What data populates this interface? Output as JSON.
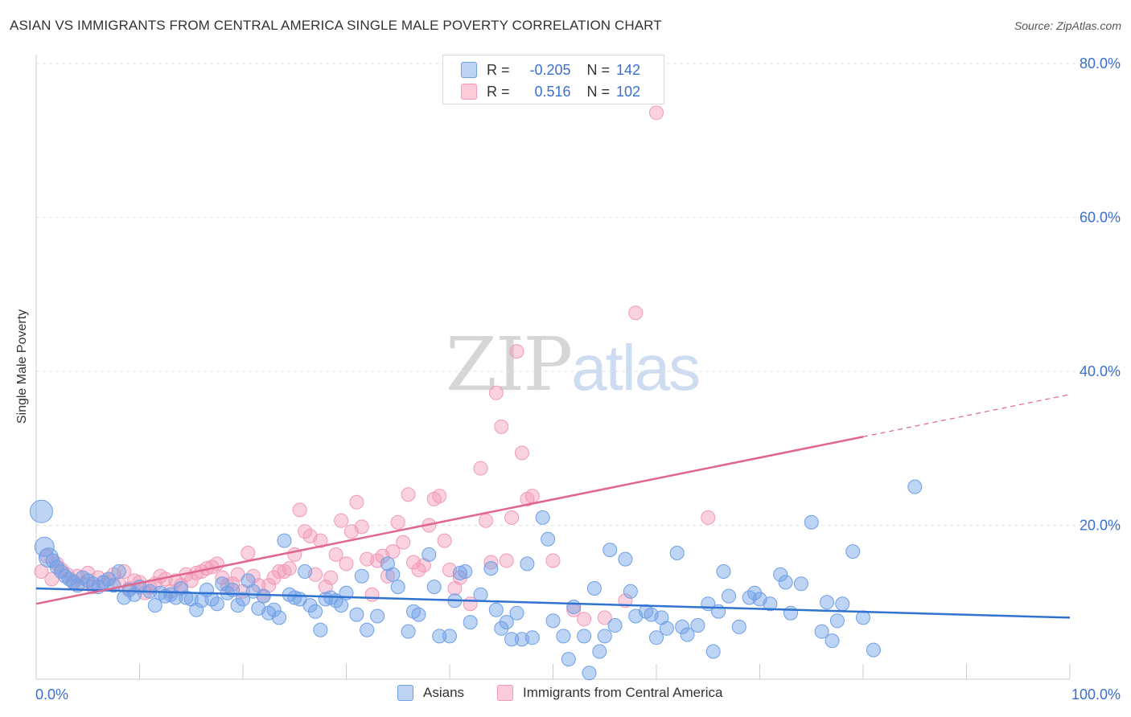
{
  "title": "ASIAN VS IMMIGRANTS FROM CENTRAL AMERICA SINGLE MALE POVERTY CORRELATION CHART",
  "source": "Source: ZipAtlas.com",
  "watermark": {
    "zip": "ZIP",
    "atlas": "atlas"
  },
  "legend_top": [
    {
      "r_label": "R =",
      "r_value": "-0.205",
      "n_label": "N =",
      "n_value": "142"
    },
    {
      "r_label": "R =",
      "r_value": "0.516",
      "n_label": "N =",
      "n_value": "102"
    }
  ],
  "legend_bottom": [
    "Asians",
    "Immigrants from Central America"
  ],
  "colors": {
    "asians": "#6fa0e6",
    "asians_line": "#2f72d0",
    "immigrants": "#f29ab7",
    "immigrants_line": "#e0668f",
    "axis_text": "#3a6fd0",
    "grid": "#e2e2e2"
  },
  "chart_data": {
    "type": "scatter",
    "ylabel": "Single Male Poverty",
    "x_tick_labels": [
      "0.0%",
      "100.0%"
    ],
    "y_tick_labels": [
      "20.0%",
      "40.0%",
      "60.0%",
      "80.0%"
    ],
    "xlim": [
      0,
      100
    ],
    "ylim": [
      0,
      80
    ],
    "y_ticks": [
      20,
      40,
      60,
      80
    ],
    "grid": true,
    "series": [
      {
        "name": "Asians",
        "R": -0.205,
        "N": 142,
        "trend": {
          "x": [
            0,
            100
          ],
          "y": [
            11.8,
            8.0
          ]
        },
        "points": [
          [
            0.5,
            21.8
          ],
          [
            0.8,
            17.2
          ],
          [
            1.2,
            15.8
          ],
          [
            1.6,
            15.4
          ],
          [
            2,
            14.6
          ],
          [
            2.4,
            14.0
          ],
          [
            2.8,
            13.4
          ],
          [
            3.2,
            13.0
          ],
          [
            3.6,
            12.6
          ],
          [
            4,
            12.2
          ],
          [
            4.5,
            13.2
          ],
          [
            5,
            12.8
          ],
          [
            5.5,
            12.4
          ],
          [
            6,
            12.0
          ],
          [
            6.5,
            12.6
          ],
          [
            7,
            13.0
          ],
          [
            7.5,
            12.2
          ],
          [
            8,
            14.0
          ],
          [
            8.5,
            10.6
          ],
          [
            9,
            11.6
          ],
          [
            9.5,
            11.0
          ],
          [
            10,
            12.0
          ],
          [
            11,
            11.4
          ],
          [
            11.5,
            9.6
          ],
          [
            12,
            11.2
          ],
          [
            12.5,
            10.8
          ],
          [
            13,
            11.0
          ],
          [
            13.5,
            10.6
          ],
          [
            14,
            11.8
          ],
          [
            14.5,
            10.6
          ],
          [
            15,
            10.4
          ],
          [
            15.5,
            9.0
          ],
          [
            16,
            10.2
          ],
          [
            16.5,
            11.6
          ],
          [
            17,
            10.4
          ],
          [
            17.5,
            9.8
          ],
          [
            18,
            12.4
          ],
          [
            18.5,
            11.2
          ],
          [
            19,
            11.6
          ],
          [
            19.5,
            9.6
          ],
          [
            20,
            10.4
          ],
          [
            20.5,
            12.8
          ],
          [
            21,
            11.4
          ],
          [
            21.5,
            9.2
          ],
          [
            22,
            10.8
          ],
          [
            22.5,
            8.6
          ],
          [
            23,
            9.0
          ],
          [
            23.5,
            8.0
          ],
          [
            24,
            18.0
          ],
          [
            24.5,
            11.0
          ],
          [
            25,
            10.6
          ],
          [
            25.5,
            10.4
          ],
          [
            26,
            14.0
          ],
          [
            26.5,
            9.6
          ],
          [
            27,
            8.8
          ],
          [
            27.5,
            6.4
          ],
          [
            28,
            10.4
          ],
          [
            28.5,
            10.6
          ],
          [
            29,
            10.2
          ],
          [
            29.5,
            9.6
          ],
          [
            30,
            11.2
          ],
          [
            31,
            8.4
          ],
          [
            31.5,
            13.4
          ],
          [
            32,
            6.4
          ],
          [
            33,
            8.2
          ],
          [
            34,
            15.0
          ],
          [
            34.5,
            13.6
          ],
          [
            35,
            12.0
          ],
          [
            36,
            6.2
          ],
          [
            36.5,
            8.8
          ],
          [
            37,
            8.4
          ],
          [
            38,
            16.2
          ],
          [
            38.5,
            12.0
          ],
          [
            39,
            5.6
          ],
          [
            40,
            5.6
          ],
          [
            40.5,
            10.2
          ],
          [
            41,
            13.8
          ],
          [
            41.5,
            14.0
          ],
          [
            42,
            7.4
          ],
          [
            43,
            11.0
          ],
          [
            44,
            14.4
          ],
          [
            44.5,
            9.0
          ],
          [
            45,
            6.6
          ],
          [
            45.5,
            7.4
          ],
          [
            46,
            5.2
          ],
          [
            46.5,
            8.6
          ],
          [
            47,
            5.2
          ],
          [
            47.5,
            15.0
          ],
          [
            48,
            5.4
          ],
          [
            49,
            21.0
          ],
          [
            49.5,
            18.2
          ],
          [
            50,
            7.6
          ],
          [
            51,
            5.6
          ],
          [
            51.5,
            2.6
          ],
          [
            52,
            9.4
          ],
          [
            53,
            5.6
          ],
          [
            54,
            11.8
          ],
          [
            54.5,
            3.6
          ],
          [
            55,
            5.6
          ],
          [
            55.5,
            16.8
          ],
          [
            56,
            7.0
          ],
          [
            57,
            15.6
          ],
          [
            57.5,
            11.4
          ],
          [
            58,
            8.2
          ],
          [
            59,
            8.8
          ],
          [
            59.5,
            8.4
          ],
          [
            60,
            5.4
          ],
          [
            60.5,
            8.0
          ],
          [
            61,
            6.6
          ],
          [
            62,
            16.4
          ],
          [
            62.5,
            6.8
          ],
          [
            63,
            5.8
          ],
          [
            64,
            7.0
          ],
          [
            65,
            9.8
          ],
          [
            65.5,
            3.6
          ],
          [
            66,
            8.8
          ],
          [
            66.5,
            14.0
          ],
          [
            67,
            10.8
          ],
          [
            68,
            6.8
          ],
          [
            69,
            10.6
          ],
          [
            69.5,
            11.2
          ],
          [
            70,
            10.4
          ],
          [
            71,
            9.8
          ],
          [
            72,
            13.6
          ],
          [
            72.5,
            12.6
          ],
          [
            73,
            8.6
          ],
          [
            74,
            12.4
          ],
          [
            75,
            20.4
          ],
          [
            76,
            6.2
          ],
          [
            76.5,
            10.0
          ],
          [
            77,
            5.0
          ],
          [
            77.5,
            7.6
          ],
          [
            78,
            9.8
          ],
          [
            79,
            16.6
          ],
          [
            80,
            8.0
          ],
          [
            81,
            3.8
          ],
          [
            85,
            25.0
          ],
          [
            53.5,
            0.8
          ]
        ]
      },
      {
        "name": "Immigrants from Central America",
        "R": 0.516,
        "N": 102,
        "trend": {
          "x": [
            0,
            80
          ],
          "y": [
            9.8,
            31.5
          ],
          "dashed_to": [
            100,
            37.0
          ]
        },
        "points": [
          [
            0.5,
            14.0
          ],
          [
            1,
            16.0
          ],
          [
            1.5,
            13.0
          ],
          [
            2,
            15.0
          ],
          [
            2.5,
            14.2
          ],
          [
            3,
            13.6
          ],
          [
            3.5,
            12.8
          ],
          [
            4,
            13.4
          ],
          [
            4.5,
            12.4
          ],
          [
            5,
            13.8
          ],
          [
            5.5,
            12.0
          ],
          [
            6,
            13.2
          ],
          [
            6.5,
            12.6
          ],
          [
            7,
            13.0
          ],
          [
            7.5,
            13.6
          ],
          [
            8,
            12.4
          ],
          [
            8.5,
            14.0
          ],
          [
            9,
            11.8
          ],
          [
            9.5,
            12.8
          ],
          [
            10,
            12.6
          ],
          [
            10.5,
            11.2
          ],
          [
            11,
            12.0
          ],
          [
            11.5,
            12.4
          ],
          [
            12,
            13.4
          ],
          [
            12.5,
            13.0
          ],
          [
            13,
            11.4
          ],
          [
            13.5,
            12.8
          ],
          [
            14,
            12.2
          ],
          [
            14.5,
            13.6
          ],
          [
            15,
            12.8
          ],
          [
            15.5,
            13.8
          ],
          [
            16,
            14.0
          ],
          [
            16.5,
            14.4
          ],
          [
            17,
            14.6
          ],
          [
            17.5,
            15.0
          ],
          [
            18,
            13.2
          ],
          [
            18.5,
            12.2
          ],
          [
            19,
            12.4
          ],
          [
            19.5,
            13.6
          ],
          [
            20,
            11.4
          ],
          [
            20.5,
            16.4
          ],
          [
            21,
            13.4
          ],
          [
            21.5,
            12.2
          ],
          [
            22,
            10.8
          ],
          [
            22.5,
            12.2
          ],
          [
            23,
            13.2
          ],
          [
            23.5,
            14.0
          ],
          [
            24,
            14.0
          ],
          [
            24.5,
            14.4
          ],
          [
            25,
            16.2
          ],
          [
            25.5,
            22.0
          ],
          [
            26,
            19.2
          ],
          [
            26.5,
            18.6
          ],
          [
            27,
            13.6
          ],
          [
            27.5,
            18.0
          ],
          [
            28,
            12.0
          ],
          [
            28.5,
            13.2
          ],
          [
            29,
            16.2
          ],
          [
            29.5,
            20.6
          ],
          [
            30,
            15.0
          ],
          [
            30.5,
            19.2
          ],
          [
            31,
            23.0
          ],
          [
            31.5,
            19.8
          ],
          [
            32,
            15.6
          ],
          [
            32.5,
            11.0
          ],
          [
            33,
            15.4
          ],
          [
            33.5,
            16.0
          ],
          [
            34,
            13.4
          ],
          [
            34.5,
            16.6
          ],
          [
            35,
            20.4
          ],
          [
            35.5,
            17.8
          ],
          [
            36,
            24.0
          ],
          [
            36.5,
            15.2
          ],
          [
            37,
            14.2
          ],
          [
            37.5,
            14.8
          ],
          [
            38,
            20.0
          ],
          [
            38.5,
            23.4
          ],
          [
            39,
            23.8
          ],
          [
            39.5,
            18.0
          ],
          [
            40,
            14.2
          ],
          [
            40.5,
            11.8
          ],
          [
            41,
            13.2
          ],
          [
            42,
            9.8
          ],
          [
            43,
            27.4
          ],
          [
            43.5,
            20.6
          ],
          [
            44,
            15.2
          ],
          [
            44.5,
            37.2
          ],
          [
            45,
            32.8
          ],
          [
            45.5,
            15.4
          ],
          [
            46,
            21.0
          ],
          [
            46.5,
            42.6
          ],
          [
            47,
            29.4
          ],
          [
            47.5,
            23.4
          ],
          [
            48,
            23.8
          ],
          [
            50,
            15.4
          ],
          [
            52,
            9.0
          ],
          [
            53,
            7.8
          ],
          [
            55,
            8.0
          ],
          [
            57,
            10.2
          ],
          [
            58,
            47.6
          ],
          [
            60,
            73.6
          ],
          [
            65,
            21.0
          ]
        ]
      }
    ]
  }
}
